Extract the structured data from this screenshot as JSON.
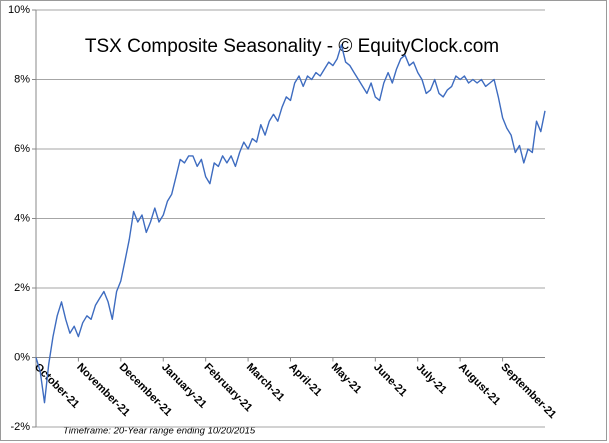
{
  "chart_data": {
    "type": "line",
    "title": "TSX Composite Seasonality - © EquityClock.com",
    "footnote": "Timeframe: 20-Year range ending 10/20/2015",
    "categories": [
      "October-21",
      null,
      null,
      null,
      null,
      null,
      null,
      null,
      null,
      null,
      "November-21",
      null,
      null,
      null,
      null,
      null,
      null,
      null,
      null,
      null,
      "December-21",
      null,
      null,
      null,
      null,
      null,
      null,
      null,
      null,
      null,
      "January-21",
      null,
      null,
      null,
      null,
      null,
      null,
      null,
      null,
      null,
      "February-21",
      null,
      null,
      null,
      null,
      null,
      null,
      null,
      null,
      null,
      "March-21",
      null,
      null,
      null,
      null,
      null,
      null,
      null,
      null,
      null,
      "April-21",
      null,
      null,
      null,
      null,
      null,
      null,
      null,
      null,
      null,
      "May-21",
      null,
      null,
      null,
      null,
      null,
      null,
      null,
      null,
      null,
      "June-21",
      null,
      null,
      null,
      null,
      null,
      null,
      null,
      null,
      null,
      "July-21",
      null,
      null,
      null,
      null,
      null,
      null,
      null,
      null,
      null,
      "August-21",
      null,
      null,
      null,
      null,
      null,
      null,
      null,
      null,
      null,
      "September-21",
      null,
      null,
      null,
      null,
      null,
      null,
      null,
      null,
      null,
      null
    ],
    "series": [
      {
        "name": "TSX Composite",
        "color": "#3e6cc0",
        "values": [
          0,
          -0.4,
          -1.3,
          -0.2,
          0.6,
          1.2,
          1.6,
          1.1,
          0.7,
          0.9,
          0.6,
          1.0,
          1.2,
          1.1,
          1.5,
          1.7,
          1.9,
          1.6,
          1.1,
          1.9,
          2.2,
          2.8,
          3.4,
          4.2,
          3.9,
          4.1,
          3.6,
          3.9,
          4.3,
          3.9,
          4.1,
          4.5,
          4.7,
          5.2,
          5.7,
          5.6,
          5.8,
          5.8,
          5.5,
          5.7,
          5.2,
          5.0,
          5.6,
          5.5,
          5.8,
          5.6,
          5.8,
          5.5,
          5.9,
          6.2,
          6.0,
          6.3,
          6.2,
          6.7,
          6.4,
          6.8,
          7.0,
          6.8,
          7.2,
          7.5,
          7.4,
          7.9,
          8.1,
          7.8,
          8.1,
          8.0,
          8.2,
          8.1,
          8.3,
          8.5,
          8.4,
          8.6,
          9.0,
          8.5,
          8.4,
          8.2,
          8.0,
          7.8,
          7.6,
          7.9,
          7.5,
          7.4,
          7.9,
          8.2,
          7.9,
          8.3,
          8.6,
          8.7,
          8.4,
          8.5,
          8.2,
          8.0,
          7.6,
          7.7,
          8.0,
          7.6,
          7.5,
          7.7,
          7.8,
          8.1,
          8.0,
          8.1,
          7.9,
          8.0,
          7.9,
          8.0,
          7.8,
          7.9,
          8.0,
          7.5,
          6.9,
          6.6,
          6.4,
          5.9,
          6.1,
          5.6,
          6.0,
          5.9,
          6.8,
          6.5,
          7.1
        ]
      }
    ],
    "ylim": [
      -2,
      10
    ],
    "yticks": [
      {
        "value": -2,
        "label": "-2%"
      },
      {
        "value": 0,
        "label": "0%"
      },
      {
        "value": 2,
        "label": "2%"
      },
      {
        "value": 4,
        "label": "4%"
      },
      {
        "value": 6,
        "label": "6%"
      },
      {
        "value": 8,
        "label": "8%"
      },
      {
        "value": 10,
        "label": "10%"
      }
    ],
    "grid": true
  }
}
